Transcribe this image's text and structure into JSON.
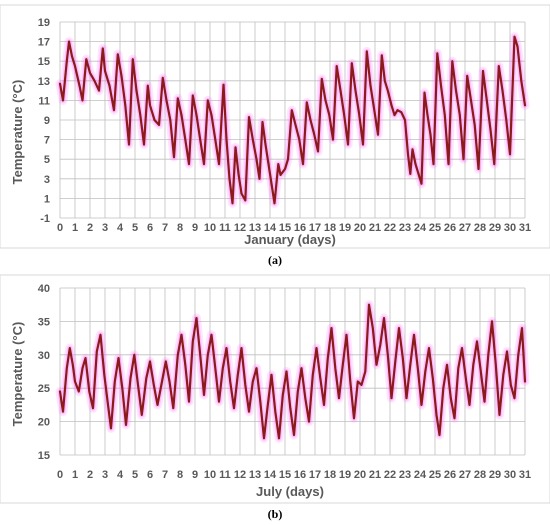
{
  "chart_data": [
    {
      "panel_label": "(a)",
      "type": "line",
      "xlabel": "January (days)",
      "ylabel": "Temperature (°C)",
      "xlim": [
        0,
        31
      ],
      "ylim": [
        -1,
        19
      ],
      "yticks": [
        -1,
        1,
        3,
        5,
        7,
        9,
        11,
        13,
        15,
        17,
        19
      ],
      "xticks": [
        0,
        1,
        2,
        3,
        4,
        5,
        6,
        7,
        8,
        9,
        10,
        11,
        12,
        13,
        14,
        15,
        16,
        17,
        18,
        19,
        20,
        21,
        22,
        23,
        24,
        25,
        26,
        27,
        28,
        29,
        30,
        31
      ],
      "grid": true,
      "line_color": "#8B1A1A",
      "glow_color": "#FF66FF",
      "points": [
        [
          0.0,
          12.7
        ],
        [
          0.2,
          11.0
        ],
        [
          0.45,
          15.0
        ],
        [
          0.6,
          17.0
        ],
        [
          0.8,
          15.5
        ],
        [
          1.0,
          14.5
        ],
        [
          1.3,
          12.5
        ],
        [
          1.5,
          11.0
        ],
        [
          1.75,
          15.2
        ],
        [
          2.0,
          13.8
        ],
        [
          2.3,
          13.0
        ],
        [
          2.6,
          12.0
        ],
        [
          2.85,
          16.3
        ],
        [
          3.0,
          14.0
        ],
        [
          3.3,
          12.5
        ],
        [
          3.6,
          10.0
        ],
        [
          3.85,
          15.7
        ],
        [
          4.1,
          13.5
        ],
        [
          4.35,
          10.5
        ],
        [
          4.6,
          6.5
        ],
        [
          4.85,
          15.2
        ],
        [
          5.1,
          12.0
        ],
        [
          5.35,
          9.5
        ],
        [
          5.6,
          6.5
        ],
        [
          5.85,
          12.5
        ],
        [
          6.0,
          10.5
        ],
        [
          6.3,
          9.0
        ],
        [
          6.6,
          8.5
        ],
        [
          6.85,
          13.3
        ],
        [
          7.1,
          11.0
        ],
        [
          7.35,
          9.0
        ],
        [
          7.6,
          5.2
        ],
        [
          7.85,
          11.2
        ],
        [
          8.1,
          9.5
        ],
        [
          8.35,
          7.0
        ],
        [
          8.6,
          4.5
        ],
        [
          8.85,
          11.5
        ],
        [
          9.1,
          9.5
        ],
        [
          9.35,
          7.0
        ],
        [
          9.6,
          4.5
        ],
        [
          9.85,
          11.0
        ],
        [
          10.1,
          9.5
        ],
        [
          10.35,
          7.0
        ],
        [
          10.6,
          4.5
        ],
        [
          10.9,
          12.6
        ],
        [
          11.1,
          7.0
        ],
        [
          11.3,
          3.0
        ],
        [
          11.5,
          0.5
        ],
        [
          11.7,
          6.2
        ],
        [
          11.9,
          3.5
        ],
        [
          12.1,
          1.5
        ],
        [
          12.35,
          0.8
        ],
        [
          12.6,
          9.3
        ],
        [
          12.85,
          7.0
        ],
        [
          13.1,
          5.0
        ],
        [
          13.3,
          3.0
        ],
        [
          13.5,
          8.8
        ],
        [
          13.7,
          6.5
        ],
        [
          13.9,
          4.5
        ],
        [
          14.1,
          2.5
        ],
        [
          14.3,
          0.5
        ],
        [
          14.55,
          4.5
        ],
        [
          14.7,
          3.4
        ],
        [
          15.0,
          4.0
        ],
        [
          15.2,
          5.0
        ],
        [
          15.45,
          10.0
        ],
        [
          15.7,
          8.5
        ],
        [
          15.95,
          7.0
        ],
        [
          16.2,
          4.5
        ],
        [
          16.45,
          10.8
        ],
        [
          16.7,
          9.0
        ],
        [
          16.95,
          7.5
        ],
        [
          17.2,
          5.8
        ],
        [
          17.45,
          13.2
        ],
        [
          17.7,
          11.0
        ],
        [
          17.95,
          9.5
        ],
        [
          18.2,
          7.0
        ],
        [
          18.45,
          14.5
        ],
        [
          18.7,
          12.0
        ],
        [
          18.95,
          9.5
        ],
        [
          19.2,
          6.5
        ],
        [
          19.45,
          14.8
        ],
        [
          19.7,
          12.0
        ],
        [
          19.95,
          9.5
        ],
        [
          20.2,
          6.5
        ],
        [
          20.45,
          16.0
        ],
        [
          20.7,
          12.5
        ],
        [
          20.95,
          10.0
        ],
        [
          21.2,
          7.5
        ],
        [
          21.45,
          15.6
        ],
        [
          21.65,
          13.0
        ],
        [
          21.85,
          12.0
        ],
        [
          22.1,
          10.5
        ],
        [
          22.3,
          9.5
        ],
        [
          22.5,
          10.0
        ],
        [
          22.75,
          9.8
        ],
        [
          23.0,
          9.0
        ],
        [
          23.2,
          5.5
        ],
        [
          23.35,
          3.5
        ],
        [
          23.5,
          6.0
        ],
        [
          23.7,
          4.5
        ],
        [
          23.9,
          3.5
        ],
        [
          24.1,
          2.5
        ],
        [
          24.3,
          11.8
        ],
        [
          24.5,
          9.5
        ],
        [
          24.7,
          7.5
        ],
        [
          24.9,
          4.5
        ],
        [
          25.15,
          15.8
        ],
        [
          25.4,
          12.5
        ],
        [
          25.65,
          9.5
        ],
        [
          25.9,
          4.5
        ],
        [
          26.15,
          15.0
        ],
        [
          26.4,
          12.0
        ],
        [
          26.65,
          9.5
        ],
        [
          26.9,
          5.0
        ],
        [
          27.15,
          13.5
        ],
        [
          27.4,
          11.0
        ],
        [
          27.65,
          8.5
        ],
        [
          27.9,
          4.0
        ],
        [
          28.2,
          14.0
        ],
        [
          28.45,
          11.0
        ],
        [
          28.7,
          8.0
        ],
        [
          28.95,
          4.5
        ],
        [
          29.25,
          14.5
        ],
        [
          29.5,
          12.0
        ],
        [
          29.75,
          9.0
        ],
        [
          30.0,
          5.5
        ],
        [
          30.3,
          17.5
        ],
        [
          30.5,
          16.5
        ],
        [
          30.75,
          13.0
        ],
        [
          31.0,
          10.5
        ]
      ]
    },
    {
      "panel_label": "(b)",
      "type": "line",
      "xlabel": "July (days)",
      "ylabel": "Temperature (°C)",
      "xlim": [
        0,
        31
      ],
      "ylim": [
        15,
        40
      ],
      "yticks": [
        15,
        20,
        25,
        30,
        35,
        40
      ],
      "xticks": [
        0,
        1,
        2,
        3,
        4,
        5,
        6,
        7,
        8,
        9,
        10,
        11,
        12,
        13,
        14,
        15,
        16,
        17,
        18,
        19,
        20,
        21,
        22,
        23,
        24,
        25,
        26,
        27,
        28,
        29,
        30,
        31
      ],
      "grid": true,
      "line_color": "#8B1A1A",
      "glow_color": "#FF66FF",
      "points": [
        [
          0.0,
          24.5
        ],
        [
          0.2,
          21.5
        ],
        [
          0.45,
          28.0
        ],
        [
          0.65,
          31.0
        ],
        [
          0.85,
          28.5
        ],
        [
          1.0,
          26.0
        ],
        [
          1.25,
          24.5
        ],
        [
          1.5,
          28.0
        ],
        [
          1.7,
          29.5
        ],
        [
          1.95,
          24.5
        ],
        [
          2.2,
          22.0
        ],
        [
          2.45,
          30.5
        ],
        [
          2.7,
          33.0
        ],
        [
          2.95,
          27.0
        ],
        [
          3.2,
          22.5
        ],
        [
          3.4,
          19.0
        ],
        [
          3.65,
          26.0
        ],
        [
          3.9,
          29.5
        ],
        [
          4.15,
          25.0
        ],
        [
          4.4,
          19.5
        ],
        [
          4.7,
          26.5
        ],
        [
          4.95,
          30.0
        ],
        [
          5.2,
          25.5
        ],
        [
          5.45,
          21.0
        ],
        [
          5.75,
          26.5
        ],
        [
          6.0,
          29.0
        ],
        [
          6.25,
          25.5
        ],
        [
          6.5,
          22.5
        ],
        [
          6.8,
          26.0
        ],
        [
          7.05,
          29.0
        ],
        [
          7.3,
          26.0
        ],
        [
          7.55,
          22.0
        ],
        [
          7.85,
          30.0
        ],
        [
          8.1,
          33.0
        ],
        [
          8.35,
          28.5
        ],
        [
          8.6,
          23.0
        ],
        [
          8.85,
          32.0
        ],
        [
          9.1,
          35.5
        ],
        [
          9.35,
          30.0
        ],
        [
          9.6,
          24.0
        ],
        [
          9.85,
          30.0
        ],
        [
          10.1,
          33.0
        ],
        [
          10.35,
          28.0
        ],
        [
          10.6,
          23.0
        ],
        [
          10.85,
          28.0
        ],
        [
          11.1,
          31.0
        ],
        [
          11.35,
          26.0
        ],
        [
          11.6,
          22.0
        ],
        [
          11.85,
          27.0
        ],
        [
          12.1,
          31.0
        ],
        [
          12.35,
          25.5
        ],
        [
          12.6,
          21.5
        ],
        [
          12.85,
          26.0
        ],
        [
          13.1,
          28.0
        ],
        [
          13.35,
          23.0
        ],
        [
          13.6,
          17.5
        ],
        [
          13.85,
          22.5
        ],
        [
          14.1,
          27.0
        ],
        [
          14.35,
          21.5
        ],
        [
          14.6,
          17.5
        ],
        [
          14.85,
          24.0
        ],
        [
          15.1,
          27.5
        ],
        [
          15.35,
          22.0
        ],
        [
          15.6,
          18.0
        ],
        [
          15.85,
          24.5
        ],
        [
          16.1,
          28.0
        ],
        [
          16.35,
          23.5
        ],
        [
          16.6,
          20.0
        ],
        [
          16.85,
          27.0
        ],
        [
          17.1,
          31.0
        ],
        [
          17.35,
          26.5
        ],
        [
          17.6,
          22.5
        ],
        [
          17.85,
          29.5
        ],
        [
          18.1,
          34.0
        ],
        [
          18.35,
          28.0
        ],
        [
          18.6,
          23.5
        ],
        [
          18.85,
          28.5
        ],
        [
          19.1,
          33.0
        ],
        [
          19.35,
          26.0
        ],
        [
          19.6,
          20.5
        ],
        [
          19.85,
          26.0
        ],
        [
          20.1,
          25.5
        ],
        [
          20.35,
          27.5
        ],
        [
          20.6,
          37.5
        ],
        [
          20.85,
          34.0
        ],
        [
          21.1,
          28.5
        ],
        [
          21.35,
          31.5
        ],
        [
          21.6,
          35.5
        ],
        [
          21.85,
          30.0
        ],
        [
          22.1,
          23.5
        ],
        [
          22.35,
          29.0
        ],
        [
          22.6,
          34.0
        ],
        [
          22.85,
          29.5
        ],
        [
          23.1,
          23.5
        ],
        [
          23.35,
          28.5
        ],
        [
          23.6,
          33.0
        ],
        [
          23.85,
          28.0
        ],
        [
          24.1,
          22.5
        ],
        [
          24.35,
          27.5
        ],
        [
          24.6,
          31.0
        ],
        [
          24.85,
          26.5
        ],
        [
          25.1,
          21.0
        ],
        [
          25.3,
          18.0
        ],
        [
          25.55,
          25.0
        ],
        [
          25.8,
          28.5
        ],
        [
          26.05,
          23.5
        ],
        [
          26.3,
          20.5
        ],
        [
          26.55,
          28.0
        ],
        [
          26.8,
          31.0
        ],
        [
          27.05,
          26.5
        ],
        [
          27.3,
          22.5
        ],
        [
          27.55,
          28.5
        ],
        [
          27.8,
          32.0
        ],
        [
          28.05,
          27.5
        ],
        [
          28.3,
          23.0
        ],
        [
          28.55,
          30.0
        ],
        [
          28.8,
          35.0
        ],
        [
          29.05,
          28.5
        ],
        [
          29.3,
          21.0
        ],
        [
          29.55,
          27.0
        ],
        [
          29.8,
          30.5
        ],
        [
          30.05,
          25.5
        ],
        [
          30.3,
          23.5
        ],
        [
          30.55,
          30.0
        ],
        [
          30.8,
          34.0
        ],
        [
          31.0,
          26.0
        ]
      ]
    }
  ]
}
